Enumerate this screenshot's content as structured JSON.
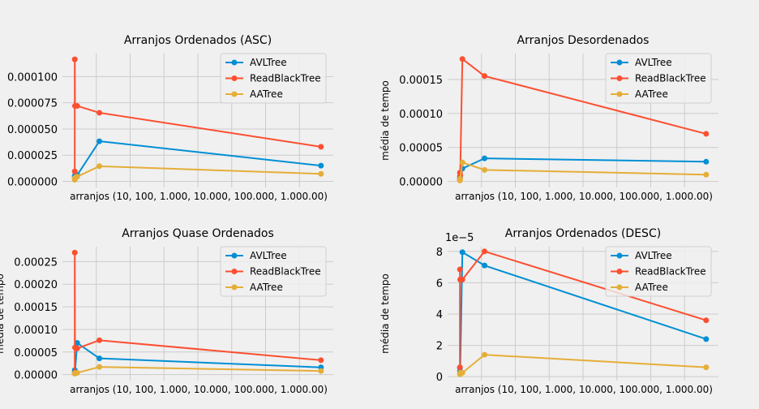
{
  "chart_data": [
    {
      "type": "line",
      "title": "Arranjos Ordenados (ASC)",
      "xlabel": "arranjos (10, 100, 1.000, 10.000, 100.000, 1.000.00)",
      "ylabel": "",
      "x": [
        10,
        100,
        1000,
        10000,
        100000,
        1000000
      ],
      "xlim": [
        -49990,
        1049990
      ],
      "ylim": [
        -5.8e-06,
        0.000122
      ],
      "yticks": [
        0,
        2.5e-05,
        5e-05,
        7.5e-05,
        0.0001
      ],
      "ytick_labels": [
        "0.000000",
        "0.000025",
        "0.000050",
        "0.000075",
        "0.000100"
      ],
      "y_offset_label": "",
      "legend_position": "top-right",
      "grid": true,
      "series": [
        {
          "name": "AVLTree",
          "color": "#008fd5",
          "values": [
            5.3e-06,
            4.5e-06,
            4.5e-06,
            6e-06,
            3.83e-05,
            1.5e-05
          ]
        },
        {
          "name": "ReadBlackTree",
          "color": "#fc4f30",
          "values": [
            9.5e-06,
            0.0001165,
            7.2e-05,
            7.2e-05,
            6.55e-05,
            3.3e-05
          ]
        },
        {
          "name": "AATree",
          "color": "#e5ae38",
          "values": [
            1.5e-06,
            3e-06,
            3.5e-06,
            4.5e-06,
            1.45e-05,
            7.2e-06
          ]
        }
      ]
    },
    {
      "type": "line",
      "title": "Arranjos Desordenados",
      "xlabel": "arranjos (10, 100, 1.000, 10.000, 100.000, 1.000.00)",
      "ylabel": "média de tempo",
      "x": [
        10,
        100,
        1000,
        10000,
        100000,
        1000000
      ],
      "xlim": [
        -49990,
        1049990
      ],
      "ylim": [
        -8.8e-06,
        0.000188
      ],
      "yticks": [
        0,
        5e-05,
        0.0001,
        0.00015
      ],
      "ytick_labels": [
        "0.00000",
        "0.00005",
        "0.00010",
        "0.00015"
      ],
      "y_offset_label": "",
      "legend_position": "top-right",
      "grid": true,
      "series": [
        {
          "name": "AVLTree",
          "color": "#008fd5",
          "values": [
            7e-06,
            4e-06,
            6e-06,
            1.9e-05,
            3.4e-05,
            2.9e-05
          ]
        },
        {
          "name": "ReadBlackTree",
          "color": "#fc4f30",
          "values": [
            3e-06,
            1.3e-05,
            9e-06,
            0.00018,
            0.000155,
            7e-05
          ]
        },
        {
          "name": "AATree",
          "color": "#e5ae38",
          "values": [
            1.5e-06,
            2e-06,
            4e-06,
            2.8e-05,
            1.7e-05,
            1e-05
          ]
        }
      ]
    },
    {
      "type": "line",
      "title": "Arranjos Quase Ordenados",
      "xlabel": "arranjos (10, 100, 1.000, 10.000, 100.000, 1.000.00)",
      "ylabel": "média de tempo",
      "x": [
        10,
        100,
        1000,
        10000,
        100000,
        1000000
      ],
      "xlim": [
        -49990,
        1049990
      ],
      "ylim": [
        -1.32e-05,
        0.000283
      ],
      "yticks": [
        0,
        5e-05,
        0.0001,
        0.00015,
        0.0002,
        0.00025
      ],
      "ytick_labels": [
        "0.00000",
        "0.00005",
        "0.00010",
        "0.00015",
        "0.00020",
        "0.00025"
      ],
      "y_offset_label": "",
      "legend_position": "top-right",
      "grid": true,
      "series": [
        {
          "name": "AVLTree",
          "color": "#008fd5",
          "values": [
            1e-05,
            5e-06,
            6e-06,
            7e-05,
            3.6e-05,
            1.6e-05
          ]
        },
        {
          "name": "ReadBlackTree",
          "color": "#fc4f30",
          "values": [
            4e-06,
            0.00027,
            6e-05,
            5.8e-05,
            7.6e-05,
            3.2e-05
          ]
        },
        {
          "name": "AATree",
          "color": "#e5ae38",
          "values": [
            2e-06,
            3e-06,
            3e-06,
            4e-06,
            1.7e-05,
            8e-06
          ]
        }
      ]
    },
    {
      "type": "line",
      "title": "Arranjos Ordenados (DESC)",
      "xlabel": "arranjos (10, 100, 1.000, 10.000, 100.000, 1.000.00)",
      "ylabel": "média de tempo",
      "x": [
        10,
        100,
        1000,
        10000,
        100000,
        1000000
      ],
      "xlim": [
        -49990,
        1049990
      ],
      "ylim": [
        -0.25,
        8.3
      ],
      "yticks": [
        0,
        2,
        4,
        6,
        8
      ],
      "ytick_labels": [
        "0",
        "2",
        "4",
        "6",
        "8"
      ],
      "y_offset_label": "1e−5",
      "legend_position": "top-right",
      "grid": true,
      "series": [
        {
          "name": "AVLTree",
          "color": "#008fd5",
          "values": [
            0.55,
            0.35,
            0.3,
            7.95,
            7.1,
            2.4
          ]
        },
        {
          "name": "ReadBlackTree",
          "color": "#fc4f30",
          "values": [
            0.6,
            6.85,
            6.2,
            6.2,
            8.0,
            3.6
          ]
        },
        {
          "name": "AATree",
          "color": "#e5ae38",
          "values": [
            0.15,
            0.2,
            0.25,
            0.25,
            1.4,
            0.6
          ]
        }
      ]
    }
  ]
}
